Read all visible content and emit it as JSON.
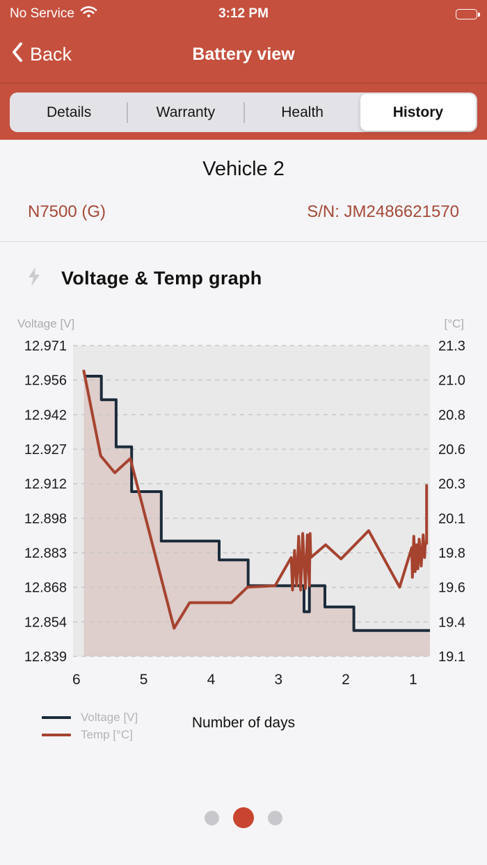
{
  "status_bar": {
    "carrier": "No Service",
    "time": "3:12 PM"
  },
  "nav": {
    "back_label": "Back",
    "title": "Battery view"
  },
  "tabs": {
    "items": [
      {
        "label": "Details",
        "active": false
      },
      {
        "label": "Warranty",
        "active": false
      },
      {
        "label": "Health",
        "active": false
      },
      {
        "label": "History",
        "active": true
      }
    ]
  },
  "vehicle": {
    "name": "Vehicle 2",
    "model": "N7500 (G)",
    "serial": "S/N: JM2486621570"
  },
  "section": {
    "title": "Voltage & Temp graph"
  },
  "chart_data": {
    "type": "line",
    "title": "Voltage & Temp graph",
    "xlabel": "Number of days",
    "x_axis_reversed": true,
    "x_ticks": [
      6,
      5,
      4,
      3,
      2,
      1
    ],
    "x_range": [
      6.05,
      0.75
    ],
    "grid": "dashed-horizontal",
    "plot_background": "#E9E9EA",
    "left_axis": {
      "label": "Voltage [V]",
      "range": [
        12.971,
        12.839
      ],
      "ticks": [
        "12.971",
        "12.956",
        "12.942",
        "12.927",
        "12.912",
        "12.898",
        "12.883",
        "12.868",
        "12.854",
        "12.839"
      ]
    },
    "right_axis": {
      "label": "[°C]",
      "range": [
        21.3,
        19.1
      ],
      "ticks": [
        "21.3",
        "21.0",
        "20.8",
        "20.6",
        "20.3",
        "20.1",
        "19.8",
        "19.6",
        "19.4",
        "19.1"
      ]
    },
    "series": [
      {
        "name": "Voltage [V]",
        "axis": "left",
        "color": "#1C2B3A",
        "style": "step-area",
        "fill": "rgba(165,67,47,0.16)",
        "points": [
          [
            5.89,
            12.958
          ],
          [
            5.63,
            12.958
          ],
          [
            5.63,
            12.948
          ],
          [
            5.41,
            12.948
          ],
          [
            5.41,
            12.928
          ],
          [
            5.18,
            12.928
          ],
          [
            5.18,
            12.909
          ],
          [
            4.74,
            12.909
          ],
          [
            4.74,
            12.888
          ],
          [
            3.88,
            12.888
          ],
          [
            3.88,
            12.88
          ],
          [
            3.45,
            12.88
          ],
          [
            3.45,
            12.869
          ],
          [
            2.62,
            12.869
          ],
          [
            2.62,
            12.858
          ],
          [
            2.54,
            12.858
          ],
          [
            2.54,
            12.869
          ],
          [
            2.31,
            12.869
          ],
          [
            2.31,
            12.86
          ],
          [
            1.88,
            12.86
          ],
          [
            1.88,
            12.85
          ],
          [
            0.75,
            12.85
          ]
        ]
      },
      {
        "name": "Temp [°C]",
        "axis": "right",
        "color": "#A5432F",
        "style": "line",
        "points": [
          [
            5.89,
            21.12
          ],
          [
            5.64,
            20.52
          ],
          [
            5.43,
            20.4
          ],
          [
            5.2,
            20.5
          ],
          [
            4.55,
            19.3
          ],
          [
            4.32,
            19.48
          ],
          [
            3.7,
            19.48
          ],
          [
            3.46,
            19.59
          ],
          [
            3.05,
            19.6
          ],
          [
            2.81,
            19.8
          ],
          [
            2.79,
            19.57
          ],
          [
            2.76,
            19.85
          ],
          [
            2.73,
            19.6
          ],
          [
            2.7,
            19.95
          ],
          [
            2.67,
            19.57
          ],
          [
            2.64,
            19.97
          ],
          [
            2.6,
            19.58
          ],
          [
            2.57,
            19.96
          ],
          [
            2.54,
            19.6
          ],
          [
            2.53,
            19.97
          ],
          [
            2.52,
            19.8
          ],
          [
            2.3,
            19.89
          ],
          [
            2.07,
            19.79
          ],
          [
            1.66,
            19.99
          ],
          [
            1.2,
            19.59
          ],
          [
            1.02,
            19.87
          ],
          [
            1.01,
            19.66
          ],
          [
            0.99,
            19.95
          ],
          [
            0.97,
            19.7
          ],
          [
            0.95,
            19.89
          ],
          [
            0.93,
            19.72
          ],
          [
            0.91,
            19.93
          ],
          [
            0.88,
            19.74
          ],
          [
            0.85,
            19.96
          ],
          [
            0.83,
            19.8
          ],
          [
            0.82,
            19.9
          ],
          [
            0.8,
            19.9
          ],
          [
            0.8,
            20.31
          ]
        ]
      }
    ]
  },
  "legend": {
    "voltage_label": "Voltage [V]",
    "temp_label": "Temp [°C]"
  },
  "xlabel": "Number of days",
  "pager": {
    "dot_count": 3,
    "active_index": 1
  },
  "icons": [
    "wifi-icon",
    "battery-icon",
    "back-chevron-icon",
    "bolt-icon"
  ],
  "colors": {
    "header_red": "#C5503E",
    "accent_text_red": "#A54A38",
    "voltage_line": "#1C2B3A",
    "temp_line": "#A5432F",
    "active_dot_red": "#C8452F",
    "plot_bg": "#E9E9EA",
    "page_bg": "#F5F5F7"
  }
}
